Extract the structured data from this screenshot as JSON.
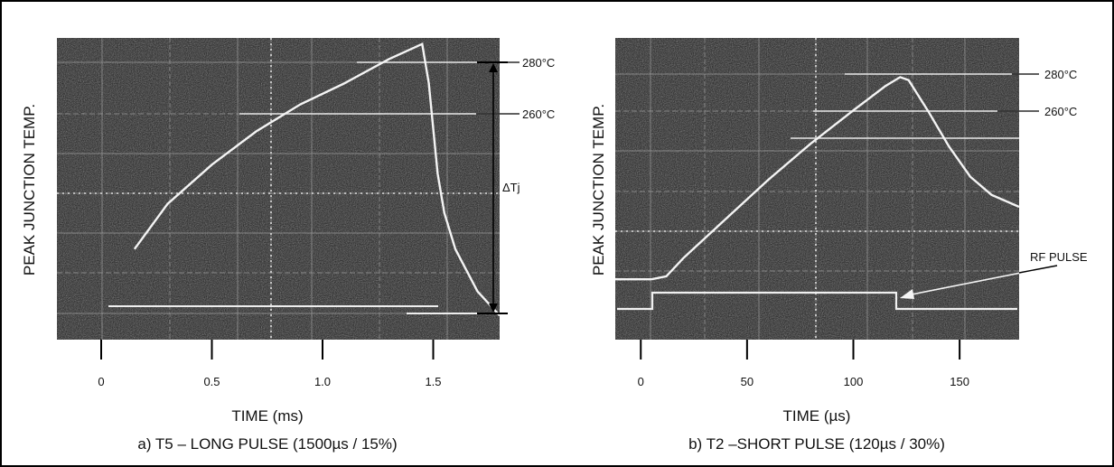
{
  "chart_data": [
    {
      "type": "line",
      "title": "a) T5 – LONG PULSE (1500µs / 15%)",
      "xlabel": "TIME (ms)",
      "ylabel": "PEAK JUNCTION TEMP.",
      "xticks": [
        "0",
        "0.5",
        "1.0",
        "1.5"
      ],
      "xlim": [
        -0.2,
        1.8
      ],
      "ref_lines": [
        "280°C",
        "260°C"
      ],
      "annotations": [
        "ΔTj"
      ],
      "series": [
        {
          "x": [
            0.15,
            0.3,
            0.5,
            0.7,
            0.9,
            1.1,
            1.3,
            1.45,
            1.48,
            1.5,
            1.52,
            1.55,
            1.6,
            1.7,
            1.8
          ],
          "y": [
            0.3,
            0.45,
            0.58,
            0.69,
            0.78,
            0.85,
            0.93,
            0.98,
            0.85,
            0.7,
            0.55,
            0.42,
            0.3,
            0.16,
            0.08
          ]
        }
      ],
      "grid": true
    },
    {
      "type": "line",
      "title": "b) T2 –SHORT PULSE (120µs / 30%)",
      "xlabel": "TIME (µs)",
      "ylabel": "PEAK JUNCTION TEMP.",
      "xticks": [
        "0",
        "50",
        "100",
        "150"
      ],
      "xlim": [
        -12,
        178
      ],
      "ref_lines": [
        "280°C",
        "260°C"
      ],
      "annotations": [
        "RF PULSE"
      ],
      "series": [
        {
          "x": [
            -12,
            5,
            12,
            20,
            40,
            60,
            80,
            100,
            115,
            122,
            126,
            135,
            145,
            155,
            165,
            178
          ],
          "y": [
            0.2,
            0.2,
            0.21,
            0.27,
            0.4,
            0.53,
            0.65,
            0.76,
            0.84,
            0.87,
            0.86,
            0.76,
            0.64,
            0.54,
            0.48,
            0.44
          ]
        }
      ],
      "grid": true
    }
  ]
}
